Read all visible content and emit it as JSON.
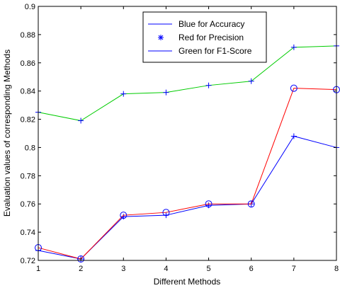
{
  "chart_data": {
    "type": "line",
    "title": "",
    "xlabel": "Different Methods",
    "ylabel": "Evaluation values of corresponding Methods",
    "x": [
      1,
      2,
      3,
      4,
      5,
      6,
      7,
      8
    ],
    "xlim": [
      1,
      8
    ],
    "ylim": [
      0.72,
      0.9
    ],
    "xticks": [
      "1",
      "2",
      "3",
      "4",
      "5",
      "6",
      "7",
      "8"
    ],
    "yticks": [
      "0.72",
      "0.74",
      "0.76",
      "0.78",
      "0.8",
      "0.82",
      "0.84",
      "0.86",
      "0.88",
      "0.9"
    ],
    "grid": false,
    "legend_position": "top-center",
    "legend": [
      "Blue for Accuracy",
      "Red for Precision",
      "Green for F1-Score"
    ],
    "series": [
      {
        "values": [
          0.727,
          0.721,
          0.751,
          0.752,
          0.759,
          0.76,
          0.808,
          0.8
        ],
        "color": "#0000ff",
        "marker": "plus"
      },
      {
        "values": [
          0.729,
          0.721,
          0.752,
          0.754,
          0.76,
          0.76,
          0.842,
          0.841
        ],
        "color": "#ff0000",
        "marker": "circle",
        "marker_color": "#0000ff"
      },
      {
        "values": [
          0.825,
          0.819,
          0.838,
          0.839,
          0.844,
          0.847,
          0.871,
          0.872
        ],
        "color": "#00cc00",
        "marker": "plus",
        "marker_color": "#0000ff"
      }
    ],
    "legend_colors": [
      "#0000ff",
      "#0000ff",
      "#0000ff"
    ],
    "legend_markers": [
      "none",
      "star",
      "none"
    ]
  }
}
